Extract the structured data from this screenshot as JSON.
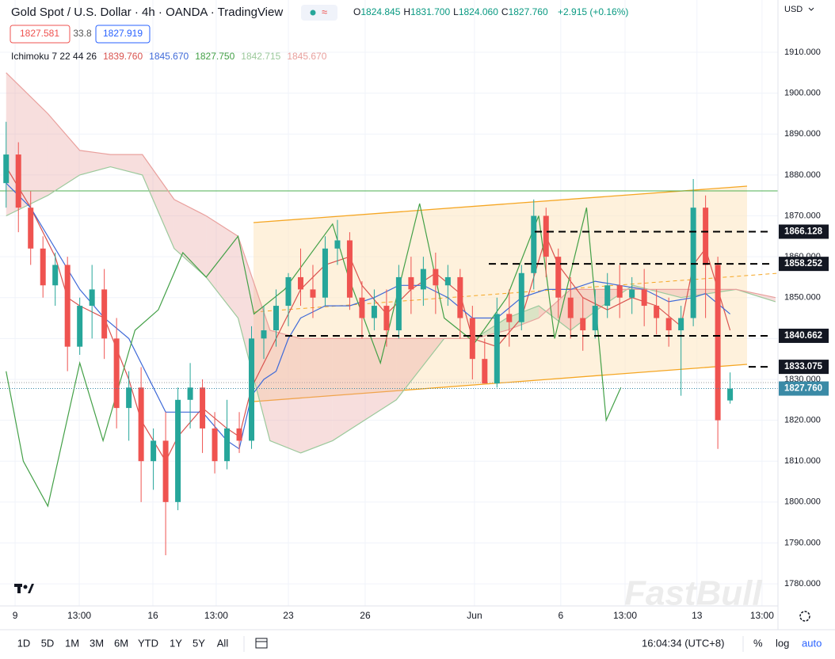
{
  "header": {
    "title": "Gold Spot / U.S. Dollar · 4h · OANDA · TradingView",
    "ohlc": [
      {
        "label": "O",
        "value": "1824.845"
      },
      {
        "label": "H",
        "value": "1831.700"
      },
      {
        "label": "L",
        "value": "1824.060"
      },
      {
        "label": "C",
        "value": "1827.760"
      }
    ],
    "change": "+2.915 (+0.16%)",
    "sell": "1827.581",
    "spread": "33.8",
    "buy": "1827.919",
    "indicator": "Ichimoku 7 22 44 26",
    "indicator_values": [
      {
        "value": "1839.760",
        "color": "#d9534f"
      },
      {
        "value": "1845.670",
        "color": "#3f6ad8"
      },
      {
        "value": "1827.750",
        "color": "#43a047"
      },
      {
        "value": "1842.715",
        "color": "#9cc99c"
      },
      {
        "value": "1845.670",
        "color": "#e9a09d"
      }
    ],
    "currency": "USD",
    "watermark": "FastBull"
  },
  "chart_data": {
    "type": "candlestick",
    "open": [
      1878,
      1885,
      1872,
      1862,
      1853,
      1858,
      1838,
      1848,
      1852,
      1840,
      1823,
      1828,
      1810,
      1815,
      1800,
      1825,
      1828,
      1818,
      1810,
      1818,
      1815,
      1840,
      1842,
      1848,
      1855,
      1852,
      1850,
      1862,
      1864,
      1850,
      1845,
      1848,
      1842,
      1855,
      1852,
      1857,
      1853,
      1855,
      1845,
      1835,
      1829,
      1846,
      1844,
      1856,
      1870,
      1860,
      1850,
      1845,
      1842,
      1848,
      1853,
      1850,
      1852,
      1848,
      1845,
      1842,
      1845,
      1872,
      1858,
      1824.845
    ],
    "high": [
      1893,
      1888,
      1876,
      1865,
      1861,
      1860,
      1850,
      1858,
      1857,
      1845,
      1832,
      1833,
      1818,
      1822,
      1828,
      1834,
      1830,
      1822,
      1825,
      1822,
      1843,
      1848,
      1852,
      1856,
      1862,
      1858,
      1865,
      1869,
      1866,
      1854,
      1852,
      1852,
      1858,
      1860,
      1860,
      1861,
      1858,
      1857,
      1848,
      1840,
      1850,
      1852,
      1858,
      1874,
      1872,
      1862,
      1855,
      1850,
      1852,
      1856,
      1858,
      1855,
      1857,
      1852,
      1850,
      1848,
      1879,
      1875,
      1860,
      1831.7
    ],
    "low": [
      1872,
      1866,
      1858,
      1850,
      1848,
      1832,
      1836,
      1840,
      1835,
      1818,
      1815,
      1800,
      1803,
      1787,
      1798,
      1818,
      1812,
      1807,
      1808,
      1812,
      1813,
      1835,
      1838,
      1843,
      1848,
      1845,
      1848,
      1858,
      1847,
      1840,
      1842,
      1838,
      1840,
      1846,
      1848,
      1846,
      1848,
      1840,
      1830,
      1829,
      1828,
      1838,
      1842,
      1852,
      1855,
      1845,
      1840,
      1837,
      1840,
      1845,
      1845,
      1846,
      1843,
      1841,
      1838,
      1826,
      1843,
      1845,
      1813,
      1824.06
    ],
    "close": [
      1885,
      1872,
      1862,
      1853,
      1858,
      1838,
      1848,
      1852,
      1840,
      1823,
      1828,
      1810,
      1815,
      1800,
      1825,
      1828,
      1818,
      1810,
      1818,
      1815,
      1840,
      1842,
      1848,
      1855,
      1852,
      1850,
      1862,
      1864,
      1850,
      1845,
      1848,
      1842,
      1855,
      1852,
      1857,
      1853,
      1855,
      1845,
      1835,
      1829,
      1846,
      1844,
      1856,
      1870,
      1860,
      1850,
      1845,
      1842,
      1848,
      1853,
      1850,
      1852,
      1848,
      1845,
      1842,
      1845,
      1872,
      1858,
      1820,
      1827.76
    ],
    "up_color": "#26a69a",
    "down_color": "#ef5350",
    "lines": [
      {
        "color": "#d9534f",
        "x": [
          0,
          2,
          4,
          5,
          6,
          8,
          10,
          11,
          13,
          14,
          16,
          18,
          19,
          20,
          22,
          24,
          26,
          28,
          29,
          31,
          33,
          35,
          37,
          38,
          40,
          42,
          44,
          45,
          47,
          49,
          51,
          53,
          55,
          56,
          57,
          59
        ],
        "values": [
          1882,
          1872,
          1860,
          1850,
          1848,
          1845,
          1830,
          1820,
          1810,
          1816,
          1823,
          1818,
          1816,
          1828,
          1840,
          1852,
          1858,
          1860,
          1853,
          1846,
          1852,
          1856,
          1851,
          1840,
          1838,
          1845,
          1865,
          1858,
          1850,
          1847,
          1850,
          1848,
          1843,
          1858,
          1862,
          1842
        ]
      },
      {
        "color": "#3f6ad8",
        "x": [
          0,
          2,
          4,
          6,
          8,
          10,
          12,
          13,
          14,
          16,
          18,
          19,
          20,
          21,
          22,
          23,
          24,
          26,
          28,
          30,
          32,
          34,
          36,
          38,
          40,
          42,
          44,
          46,
          48,
          50,
          52,
          54,
          56,
          57,
          59
        ],
        "values": [
          1878,
          1872,
          1862,
          1852,
          1845,
          1840,
          1828,
          1822,
          1822,
          1822,
          1815,
          1813,
          1826,
          1830,
          1832,
          1840,
          1845,
          1848,
          1848,
          1850,
          1853,
          1853,
          1850,
          1845,
          1845,
          1850,
          1852,
          1852,
          1854,
          1853,
          1852,
          1849,
          1850,
          1851,
          1846
        ]
      },
      {
        "color": "#43a047",
        "x": [
          0,
          1.4,
          3.4,
          6,
          7.9,
          10.5,
          12.4,
          14.4,
          16.3,
          18.9,
          20.2,
          22.7,
          26.6,
          27.9,
          30.5,
          33.7,
          35.7,
          38.2,
          40.8,
          43.4,
          44.7,
          47.3,
          48.9,
          50.1
        ],
        "values": [
          1832,
          1810,
          1799,
          1834,
          1815,
          1842,
          1847,
          1861,
          1855,
          1865,
          1846,
          1852,
          1868,
          1855,
          1834,
          1873,
          1845,
          1839,
          1850,
          1870,
          1840,
          1872,
          1820,
          1828
        ]
      }
    ],
    "cloud": {
      "x": [
        0,
        3.4,
        6,
        8.5,
        11.1,
        13.7,
        16.3,
        18.9,
        21.5,
        24,
        26.6,
        29.2,
        31.8,
        35.7,
        38.2,
        40.8,
        43.4,
        46,
        48.6,
        51.1,
        55,
        59.5,
        62.7
      ],
      "lead_a": [
        1870,
        1875,
        1880,
        1882,
        1880,
        1862,
        1855,
        1845,
        1815,
        1812,
        1815,
        1820,
        1825,
        1840,
        1840,
        1845,
        1848,
        1842,
        1848,
        1853,
        1850,
        1852,
        1849
      ],
      "lead_b": [
        1905,
        1895,
        1886,
        1885,
        1885,
        1874,
        1870,
        1865,
        1842,
        1840,
        1840,
        1840,
        1840,
        1840,
        1840,
        1842,
        1845,
        1852,
        1852,
        1852,
        1852,
        1852,
        1850
      ],
      "color_a": "#9cc99c",
      "color_b": "#e9a09d"
    },
    "xlim": [
      -0.5,
      62.9
    ],
    "xticks": [
      {
        "value": 0.73,
        "label": "9"
      },
      {
        "value": 5.96,
        "label": "13:00"
      },
      {
        "value": 11.96,
        "label": "16"
      },
      {
        "value": 17.12,
        "label": "13:00"
      },
      {
        "value": 23,
        "label": "23"
      },
      {
        "value": 29.26,
        "label": "26"
      },
      {
        "value": 38.17,
        "label": "Jun"
      },
      {
        "value": 45.2,
        "label": "6"
      },
      {
        "value": 50.44,
        "label": "13:00"
      },
      {
        "value": 56.3,
        "label": "13"
      },
      {
        "value": 61.6,
        "label": "13:00"
      }
    ],
    "ylim": [
      1774.59,
      1922.79
    ],
    "yticks": [
      {
        "value": 1780,
        "label": "1780.000"
      },
      {
        "value": 1790,
        "label": "1790.000"
      },
      {
        "value": 1800,
        "label": "1800.000"
      },
      {
        "value": 1810,
        "label": "1810.000"
      },
      {
        "value": 1820,
        "label": "1820.000"
      },
      {
        "value": 1830,
        "label": "1830.000"
      },
      {
        "value": 1840,
        "label": "1840.000"
      },
      {
        "value": 1850,
        "label": "1850.000"
      },
      {
        "value": 1860,
        "label": "1860.000"
      },
      {
        "value": 1870,
        "label": "1870.000"
      },
      {
        "value": 1880,
        "label": "1880.000"
      },
      {
        "value": 1890,
        "label": "1890.000"
      },
      {
        "value": 1900,
        "label": "1900.000"
      },
      {
        "value": 1910,
        "label": "1910.000"
      }
    ],
    "grid": true,
    "levels": [
      1866.128,
      1858.252,
      1840.662,
      1833.075
    ],
    "last_price": {
      "value": 1827.76,
      "label": "1827.760"
    },
    "last_price_color": "#3a8aa6"
  },
  "toolbar": {
    "ranges": [
      "1D",
      "5D",
      "1M",
      "3M",
      "6M",
      "YTD",
      "1Y",
      "5Y",
      "All"
    ],
    "time": "16:04:34 (UTC+8)",
    "percent": "%",
    "log": "log",
    "auto": "auto"
  }
}
